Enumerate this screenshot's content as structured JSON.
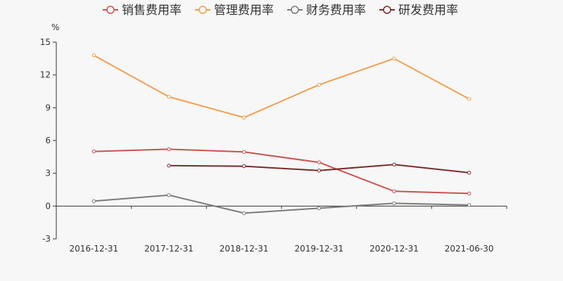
{
  "chart_data": {
    "type": "line",
    "title": "",
    "xlabel": "",
    "ylabel": "%",
    "categories": [
      "2016-12-31",
      "2017-12-31",
      "2018-12-31",
      "2019-12-31",
      "2020-12-31",
      "2021-06-30"
    ],
    "y_ticks": [
      "15",
      "12",
      "9",
      "6",
      "3",
      "0",
      "-3"
    ],
    "ylim": [
      -3,
      15
    ],
    "grid": false,
    "legend_position": "top",
    "series": [
      {
        "name": "销售费用率",
        "color": "#c9534f",
        "values": [
          5.0,
          5.2,
          4.95,
          4.0,
          1.35,
          1.15
        ]
      },
      {
        "name": "管理费用率",
        "color": "#f0a050",
        "values": [
          13.8,
          10.0,
          8.1,
          11.1,
          13.5,
          9.8
        ]
      },
      {
        "name": "财务费用率",
        "color": "#7a7a7a",
        "values": [
          0.45,
          1.0,
          -0.65,
          -0.2,
          0.25,
          0.1
        ]
      },
      {
        "name": "研发费用率",
        "color": "#7b2a2a",
        "values": [
          null,
          3.7,
          3.65,
          3.25,
          3.8,
          3.05
        ]
      }
    ]
  }
}
